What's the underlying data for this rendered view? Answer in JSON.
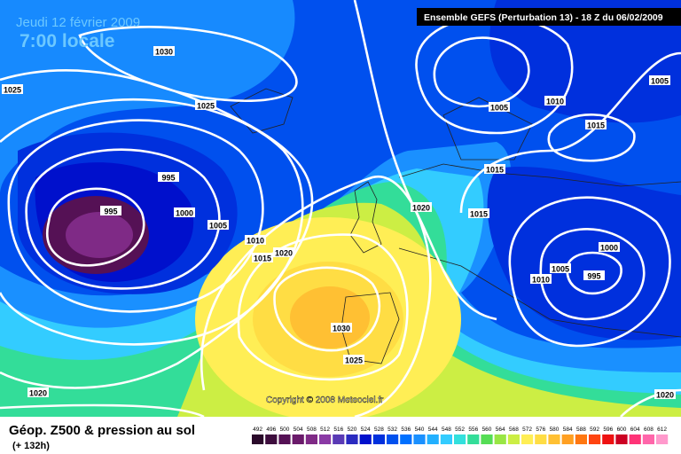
{
  "header": {
    "date": "Jeudi 12 février 2009",
    "time": "7:00 locale",
    "model": "Ensemble GEFS (Perturbation 13)  -  18 Z du 06/02/2009"
  },
  "map": {
    "isobar_labels": [
      1030,
      1025,
      1025,
      995,
      995,
      1000,
      1005,
      1010,
      1015,
      1020,
      1020,
      1015,
      1015,
      1005,
      1010,
      1015,
      1005,
      1000,
      1005,
      1010,
      995,
      1030,
      1025,
      1020,
      1020
    ],
    "copyright": "Copyright © 2008 Meteociel.fr"
  },
  "footer": {
    "title": "Géop. Z500 & pression au sol",
    "lead": "(+ 132h)"
  },
  "legend": [
    {
      "value": 492,
      "color": "#2a0a2a"
    },
    {
      "value": 496,
      "color": "#3d0d3d"
    },
    {
      "value": 500,
      "color": "#551155"
    },
    {
      "value": 504,
      "color": "#6a1a6a"
    },
    {
      "value": 508,
      "color": "#7f2a86"
    },
    {
      "value": 512,
      "color": "#8a3aa5"
    },
    {
      "value": 516,
      "color": "#5a3ab5"
    },
    {
      "value": 520,
      "color": "#2a2ac0"
    },
    {
      "value": 524,
      "color": "#0010cc"
    },
    {
      "value": 528,
      "color": "#0030dd"
    },
    {
      "value": 532,
      "color": "#0050ee"
    },
    {
      "value": 536,
      "color": "#0070ff"
    },
    {
      "value": 540,
      "color": "#1a90ff"
    },
    {
      "value": 544,
      "color": "#22b0ff"
    },
    {
      "value": 548,
      "color": "#33ccff"
    },
    {
      "value": 552,
      "color": "#33e0dd"
    },
    {
      "value": 556,
      "color": "#33dd99"
    },
    {
      "value": 560,
      "color": "#55dd55"
    },
    {
      "value": 564,
      "color": "#99e644"
    },
    {
      "value": 568,
      "color": "#ccee44"
    },
    {
      "value": 572,
      "color": "#ffee55"
    },
    {
      "value": 576,
      "color": "#ffdd44"
    },
    {
      "value": 580,
      "color": "#ffc033"
    },
    {
      "value": 584,
      "color": "#ffa022"
    },
    {
      "value": 588,
      "color": "#ff7711"
    },
    {
      "value": 592,
      "color": "#ff4411"
    },
    {
      "value": 596,
      "color": "#ee1111"
    },
    {
      "value": 600,
      "color": "#cc0022"
    },
    {
      "value": 604,
      "color": "#ff3377"
    },
    {
      "value": 608,
      "color": "#ff66aa"
    },
    {
      "value": 612,
      "color": "#ff99cc"
    }
  ]
}
